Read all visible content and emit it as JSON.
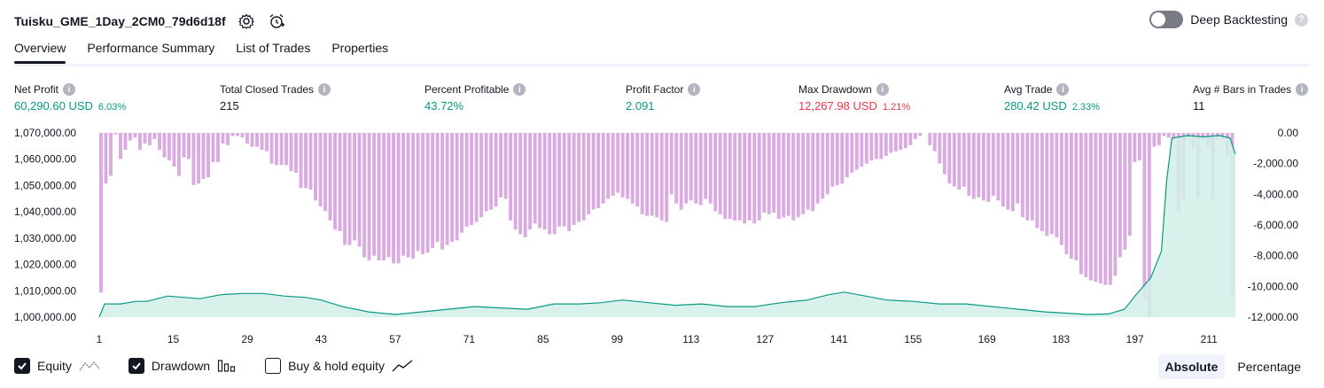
{
  "header": {
    "title": "Tuisku_GME_1Day_2CM0_79d6d18f",
    "settings_icon": "gear-icon",
    "alert_icon": "add-alert-icon"
  },
  "deep_backtesting": {
    "label": "Deep Backtesting",
    "enabled": false,
    "help": "?"
  },
  "tabs": [
    {
      "label": "Overview",
      "active": true
    },
    {
      "label": "Performance Summary",
      "active": false
    },
    {
      "label": "List of Trades",
      "active": false
    },
    {
      "label": "Properties",
      "active": false
    }
  ],
  "metrics": {
    "net_profit": {
      "label": "Net Profit",
      "value": "60,290.60 USD",
      "pct": "6.03%"
    },
    "total_closed_trades": {
      "label": "Total Closed Trades",
      "value": "215"
    },
    "percent_profitable": {
      "label": "Percent Profitable",
      "value": "43.72%"
    },
    "profit_factor": {
      "label": "Profit Factor",
      "value": "2.091"
    },
    "max_drawdown": {
      "label": "Max Drawdown",
      "value": "12,267.98 USD",
      "pct": "1.21%"
    },
    "avg_trade": {
      "label": "Avg Trade",
      "value": "280.42 USD",
      "pct": "2.33%"
    },
    "avg_bars": {
      "label": "Avg # Bars in Trades",
      "value": "11"
    },
    "info_glyph": "i"
  },
  "chart_data": {
    "type": "area",
    "x_ticks": [
      "1",
      "15",
      "29",
      "43",
      "57",
      "71",
      "85",
      "99",
      "113",
      "127",
      "141",
      "155",
      "169",
      "183",
      "197",
      "211"
    ],
    "left_axis_ticks": [
      "1,070,000.00",
      "1,060,000.00",
      "1,050,000.00",
      "1,040,000.00",
      "1,030,000.00",
      "1,020,000.00",
      "1,010,000.00",
      "1,000,000.00"
    ],
    "right_axis_ticks": [
      "0.00",
      "-2,000.00",
      "-4,000.00",
      "-6,000.00",
      "-8,000.00",
      "-10,000.00",
      "-12,000.00"
    ],
    "left_ylim": [
      1000000,
      1070000
    ],
    "right_ylim": [
      -12000,
      0
    ],
    "xlim": [
      1,
      216
    ],
    "series": [
      {
        "name": "Equity",
        "color": "#089981",
        "fill": "#d2efe7",
        "points": [
          [
            1,
            1000000
          ],
          [
            2,
            1005000
          ],
          [
            5,
            1005000
          ],
          [
            8,
            1006000
          ],
          [
            10,
            1006000
          ],
          [
            14,
            1008000
          ],
          [
            20,
            1007000
          ],
          [
            24,
            1008500
          ],
          [
            28,
            1009000
          ],
          [
            32,
            1009000
          ],
          [
            36,
            1008000
          ],
          [
            40,
            1007500
          ],
          [
            43,
            1006500
          ],
          [
            47,
            1004000
          ],
          [
            52,
            1002000
          ],
          [
            57,
            1001000
          ],
          [
            62,
            1002000
          ],
          [
            67,
            1003000
          ],
          [
            72,
            1004000
          ],
          [
            77,
            1003500
          ],
          [
            82,
            1003000
          ],
          [
            87,
            1005000
          ],
          [
            92,
            1005000
          ],
          [
            96,
            1005500
          ],
          [
            100,
            1006500
          ],
          [
            105,
            1005500
          ],
          [
            110,
            1004500
          ],
          [
            115,
            1005000
          ],
          [
            120,
            1004000
          ],
          [
            125,
            1004000
          ],
          [
            130,
            1005500
          ],
          [
            135,
            1006500
          ],
          [
            139,
            1008500
          ],
          [
            142,
            1009500
          ],
          [
            146,
            1008000
          ],
          [
            150,
            1006500
          ],
          [
            155,
            1006000
          ],
          [
            160,
            1005000
          ],
          [
            165,
            1005000
          ],
          [
            170,
            1004000
          ],
          [
            175,
            1003000
          ],
          [
            180,
            1002000
          ],
          [
            184,
            1001500
          ],
          [
            188,
            1001000
          ],
          [
            192,
            1001200
          ],
          [
            195,
            1003000
          ],
          [
            197,
            1008000
          ],
          [
            200,
            1015000
          ],
          [
            202,
            1025000
          ],
          [
            203,
            1052000
          ],
          [
            204,
            1068000
          ],
          [
            207,
            1069000
          ],
          [
            210,
            1068500
          ],
          [
            213,
            1069000
          ],
          [
            215,
            1068000
          ],
          [
            216,
            1062000
          ]
        ]
      },
      {
        "name": "Drawdown",
        "color": "#ce93d8",
        "values": [
          -10400,
          -3300,
          -2800,
          -100,
          -1700,
          -1100,
          -500,
          -300,
          -1100,
          -700,
          -800,
          -400,
          -1100,
          -1600,
          -1800,
          -2200,
          -2800,
          -1600,
          -1700,
          -3400,
          -3300,
          -3000,
          -2900,
          -1900,
          -1900,
          -700,
          -800,
          -200,
          -200,
          -300,
          -700,
          -900,
          -900,
          -1100,
          -1200,
          -2000,
          -2100,
          -2100,
          -2100,
          -2500,
          -2600,
          -3600,
          -3600,
          -3700,
          -4400,
          -4800,
          -5100,
          -5700,
          -6300,
          -6400,
          -7300,
          -7300,
          -7000,
          -7400,
          -8100,
          -8300,
          -8000,
          -8300,
          -8300,
          -8100,
          -8500,
          -8500,
          -8000,
          -8100,
          -8200,
          -7700,
          -7900,
          -7800,
          -7500,
          -7100,
          -7600,
          -7300,
          -7100,
          -7000,
          -6500,
          -6100,
          -6000,
          -5800,
          -5500,
          -5100,
          -5000,
          -4800,
          -4200,
          -4300,
          -5700,
          -6300,
          -6600,
          -6800,
          -6300,
          -5900,
          -6200,
          -6300,
          -6600,
          -6600,
          -6100,
          -6100,
          -6400,
          -6000,
          -5800,
          -5700,
          -5300,
          -5000,
          -4900,
          -4600,
          -4300,
          -4100,
          -3900,
          -4200,
          -4300,
          -4600,
          -4800,
          -5300,
          -5400,
          -5400,
          -5500,
          -5700,
          -5800,
          -4000,
          -4600,
          -5000,
          -4600,
          -4400,
          -4600,
          -4700,
          -4300,
          -4600,
          -5100,
          -5300,
          -5600,
          -5600,
          -5700,
          -5700,
          -5900,
          -5700,
          -5900,
          -5700,
          -5200,
          -5300,
          -5200,
          -5600,
          -5500,
          -5400,
          -5700,
          -5500,
          -5300,
          -5000,
          -5100,
          -4600,
          -4300,
          -4000,
          -3500,
          -3400,
          -3300,
          -2900,
          -2600,
          -2400,
          -2200,
          -2000,
          -1800,
          -1700,
          -1700,
          -1500,
          -1300,
          -1200,
          -1100,
          -1000,
          -800,
          -400,
          -200,
          0,
          -800,
          -1200,
          -2000,
          -2700,
          -3300,
          -3500,
          -3700,
          -3500,
          -4100,
          -4300,
          -4200,
          -4400,
          -4500,
          -4100,
          -4400,
          -4800,
          -5000,
          -5100,
          -4600,
          -5500,
          -5700,
          -5700,
          -6200,
          -6400,
          -6700,
          -6600,
          -6800,
          -7300,
          -7900,
          -8200,
          -8300,
          -9200,
          -9400,
          -9600,
          -9700,
          -9800,
          -9900,
          -9900,
          -9300,
          -8100,
          -7600,
          -6700,
          -1900,
          -1800,
          -10800,
          -12000,
          -900,
          -800,
          -200,
          -300,
          -500,
          -5100,
          -4300,
          -400,
          -1000,
          -4300,
          -500,
          -900,
          -4300,
          -500,
          -400,
          -1500,
          -10500
        ]
      }
    ]
  },
  "legend": [
    {
      "label": "Equity",
      "checked": true,
      "icon": "equity-line-icon"
    },
    {
      "label": "Drawdown",
      "checked": true,
      "icon": "drawdown-bars-icon"
    },
    {
      "label": "Buy & hold equity",
      "checked": false,
      "icon": "buy-hold-line-icon"
    }
  ],
  "view_mode": {
    "options": [
      "Absolute",
      "Percentage"
    ],
    "selected": "Absolute"
  }
}
